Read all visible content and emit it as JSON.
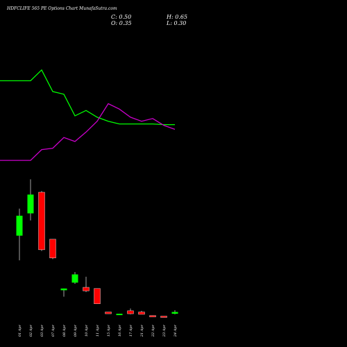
{
  "header": {
    "title": "HDFCLIFE 565 PE Options  Chart MunafaSutra.com",
    "close_label": "C: 0.50",
    "open_label": "O: 0.35",
    "high_label": "H: 0.65",
    "low_label": "L: 0.30"
  },
  "colors": {
    "background": "#000000",
    "up": "#00ff00",
    "down": "#ff0000",
    "line_green": "#00ff00",
    "line_magenta": "#cc00cc",
    "text": "#ffffff"
  },
  "chart_data": {
    "type": "candlestick",
    "categories": [
      "01 Apr",
      "02 Apr",
      "03 Apr",
      "07 Apr",
      "08 Apr",
      "09 Apr",
      "10 Apr",
      "11 Apr",
      "15 Apr",
      "16 Apr",
      "17 Apr",
      "21 Apr",
      "22 Apr",
      "23 Apr",
      "24 Apr"
    ],
    "ohlc": [
      {
        "open": 7.0,
        "high": 9.3,
        "low": 4.9,
        "close": 8.7
      },
      {
        "open": 8.9,
        "high": 11.8,
        "low": 8.3,
        "close": 10.5
      },
      {
        "open": 10.7,
        "high": 10.8,
        "low": 5.7,
        "close": 5.8
      },
      {
        "open": 6.7,
        "high": 6.7,
        "low": 5.0,
        "close": 5.1
      },
      {
        "open": 2.35,
        "high": 2.5,
        "low": 1.8,
        "close": 2.5
      },
      {
        "open": 3.0,
        "high": 3.9,
        "low": 2.9,
        "close": 3.7
      },
      {
        "open": 2.6,
        "high": 3.5,
        "low": 2.2,
        "close": 2.3
      },
      {
        "open": 2.5,
        "high": 2.5,
        "low": 1.2,
        "close": 1.2
      },
      {
        "open": 0.5,
        "high": 0.5,
        "low": 0.35,
        "close": 0.35
      },
      {
        "open": 0.3,
        "high": 0.35,
        "low": 0.25,
        "close": 0.35
      },
      {
        "open": 0.6,
        "high": 0.8,
        "low": 0.3,
        "close": 0.35
      },
      {
        "open": 0.5,
        "high": 0.6,
        "low": 0.3,
        "close": 0.3
      },
      {
        "open": 0.2,
        "high": 0.2,
        "low": 0.15,
        "close": 0.15
      },
      {
        "open": 0.15,
        "high": 0.15,
        "low": 0.1,
        "close": 0.1
      },
      {
        "open": 0.35,
        "high": 0.65,
        "low": 0.3,
        "close": 0.5
      }
    ],
    "lines": [
      {
        "color": "green",
        "values": [
          13.6,
          13.6,
          14.4,
          12.8,
          12.6,
          11.0,
          11.4,
          10.9,
          10.6,
          10.4,
          10.4,
          10.4,
          10.4,
          10.35,
          10.35
        ]
      },
      {
        "color": "magenta",
        "values": [
          7.7,
          7.7,
          8.5,
          8.6,
          9.4,
          9.1,
          9.8,
          10.6,
          11.9,
          11.5,
          10.9,
          10.6,
          10.8,
          10.3,
          10.0
        ]
      }
    ]
  }
}
